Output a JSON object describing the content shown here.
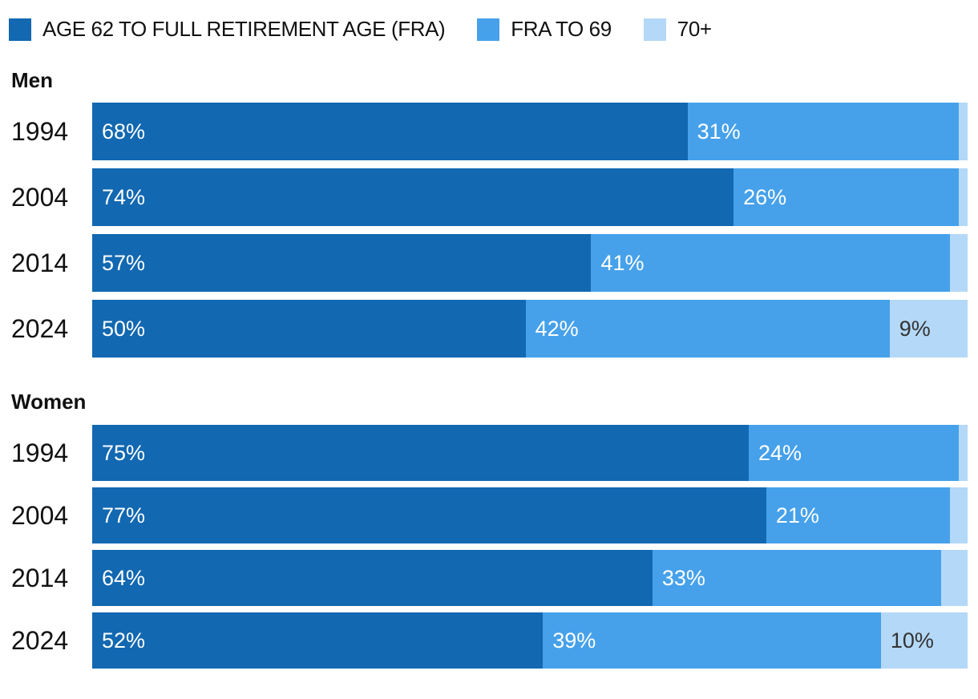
{
  "legend": {
    "items": [
      {
        "label": "AGE 62 TO FULL RETIREMENT AGE (FRA)",
        "color": "#1268b1",
        "label_color": "#ffffff"
      },
      {
        "label": "FRA TO 69",
        "color": "#46a1ea",
        "label_color": "#ffffff"
      },
      {
        "label": "70+",
        "color": "#b4d8f7",
        "label_color": "#333333"
      }
    ]
  },
  "colors": {
    "background": "#ffffff",
    "text": "#111111",
    "segment_dark_blue": "#1268b1",
    "segment_medium_blue": "#46a1ea",
    "segment_light_blue": "#b4d8f7"
  },
  "chart_data": {
    "type": "bar",
    "subtype": "horizontal-stacked",
    "unit": "percent",
    "xlim": [
      0,
      100
    ],
    "grid": false,
    "legend_position": "top",
    "series_names": [
      "AGE 62 TO FULL RETIREMENT AGE (FRA)",
      "FRA TO 69",
      "70+"
    ],
    "groups": [
      {
        "heading": "Men",
        "categories": [
          "1994",
          "2004",
          "2014",
          "2024"
        ],
        "rows": [
          {
            "year": "1994",
            "segments": [
              {
                "value": 68,
                "label": "68%"
              },
              {
                "value": 31,
                "label": "31%"
              },
              {
                "value": 1,
                "label": ""
              }
            ]
          },
          {
            "year": "2004",
            "segments": [
              {
                "value": 74,
                "label": "74%"
              },
              {
                "value": 26,
                "label": "26%"
              },
              {
                "value": 1,
                "label": ""
              }
            ]
          },
          {
            "year": "2014",
            "segments": [
              {
                "value": 57,
                "label": "57%"
              },
              {
                "value": 41,
                "label": "41%"
              },
              {
                "value": 2,
                "label": ""
              }
            ]
          },
          {
            "year": "2024",
            "segments": [
              {
                "value": 50,
                "label": "50%"
              },
              {
                "value": 42,
                "label": "42%"
              },
              {
                "value": 9,
                "label": "9%"
              }
            ]
          }
        ]
      },
      {
        "heading": "Women",
        "categories": [
          "1994",
          "2004",
          "2014",
          "2024"
        ],
        "rows": [
          {
            "year": "1994",
            "segments": [
              {
                "value": 75,
                "label": "75%"
              },
              {
                "value": 24,
                "label": "24%"
              },
              {
                "value": 1,
                "label": ""
              }
            ]
          },
          {
            "year": "2004",
            "segments": [
              {
                "value": 77,
                "label": "77%"
              },
              {
                "value": 21,
                "label": "21%"
              },
              {
                "value": 2,
                "label": ""
              }
            ]
          },
          {
            "year": "2014",
            "segments": [
              {
                "value": 64,
                "label": "64%"
              },
              {
                "value": 33,
                "label": "33%"
              },
              {
                "value": 3,
                "label": ""
              }
            ]
          },
          {
            "year": "2024",
            "segments": [
              {
                "value": 52,
                "label": "52%"
              },
              {
                "value": 39,
                "label": "39%"
              },
              {
                "value": 10,
                "label": "10%"
              }
            ]
          }
        ]
      }
    ]
  }
}
